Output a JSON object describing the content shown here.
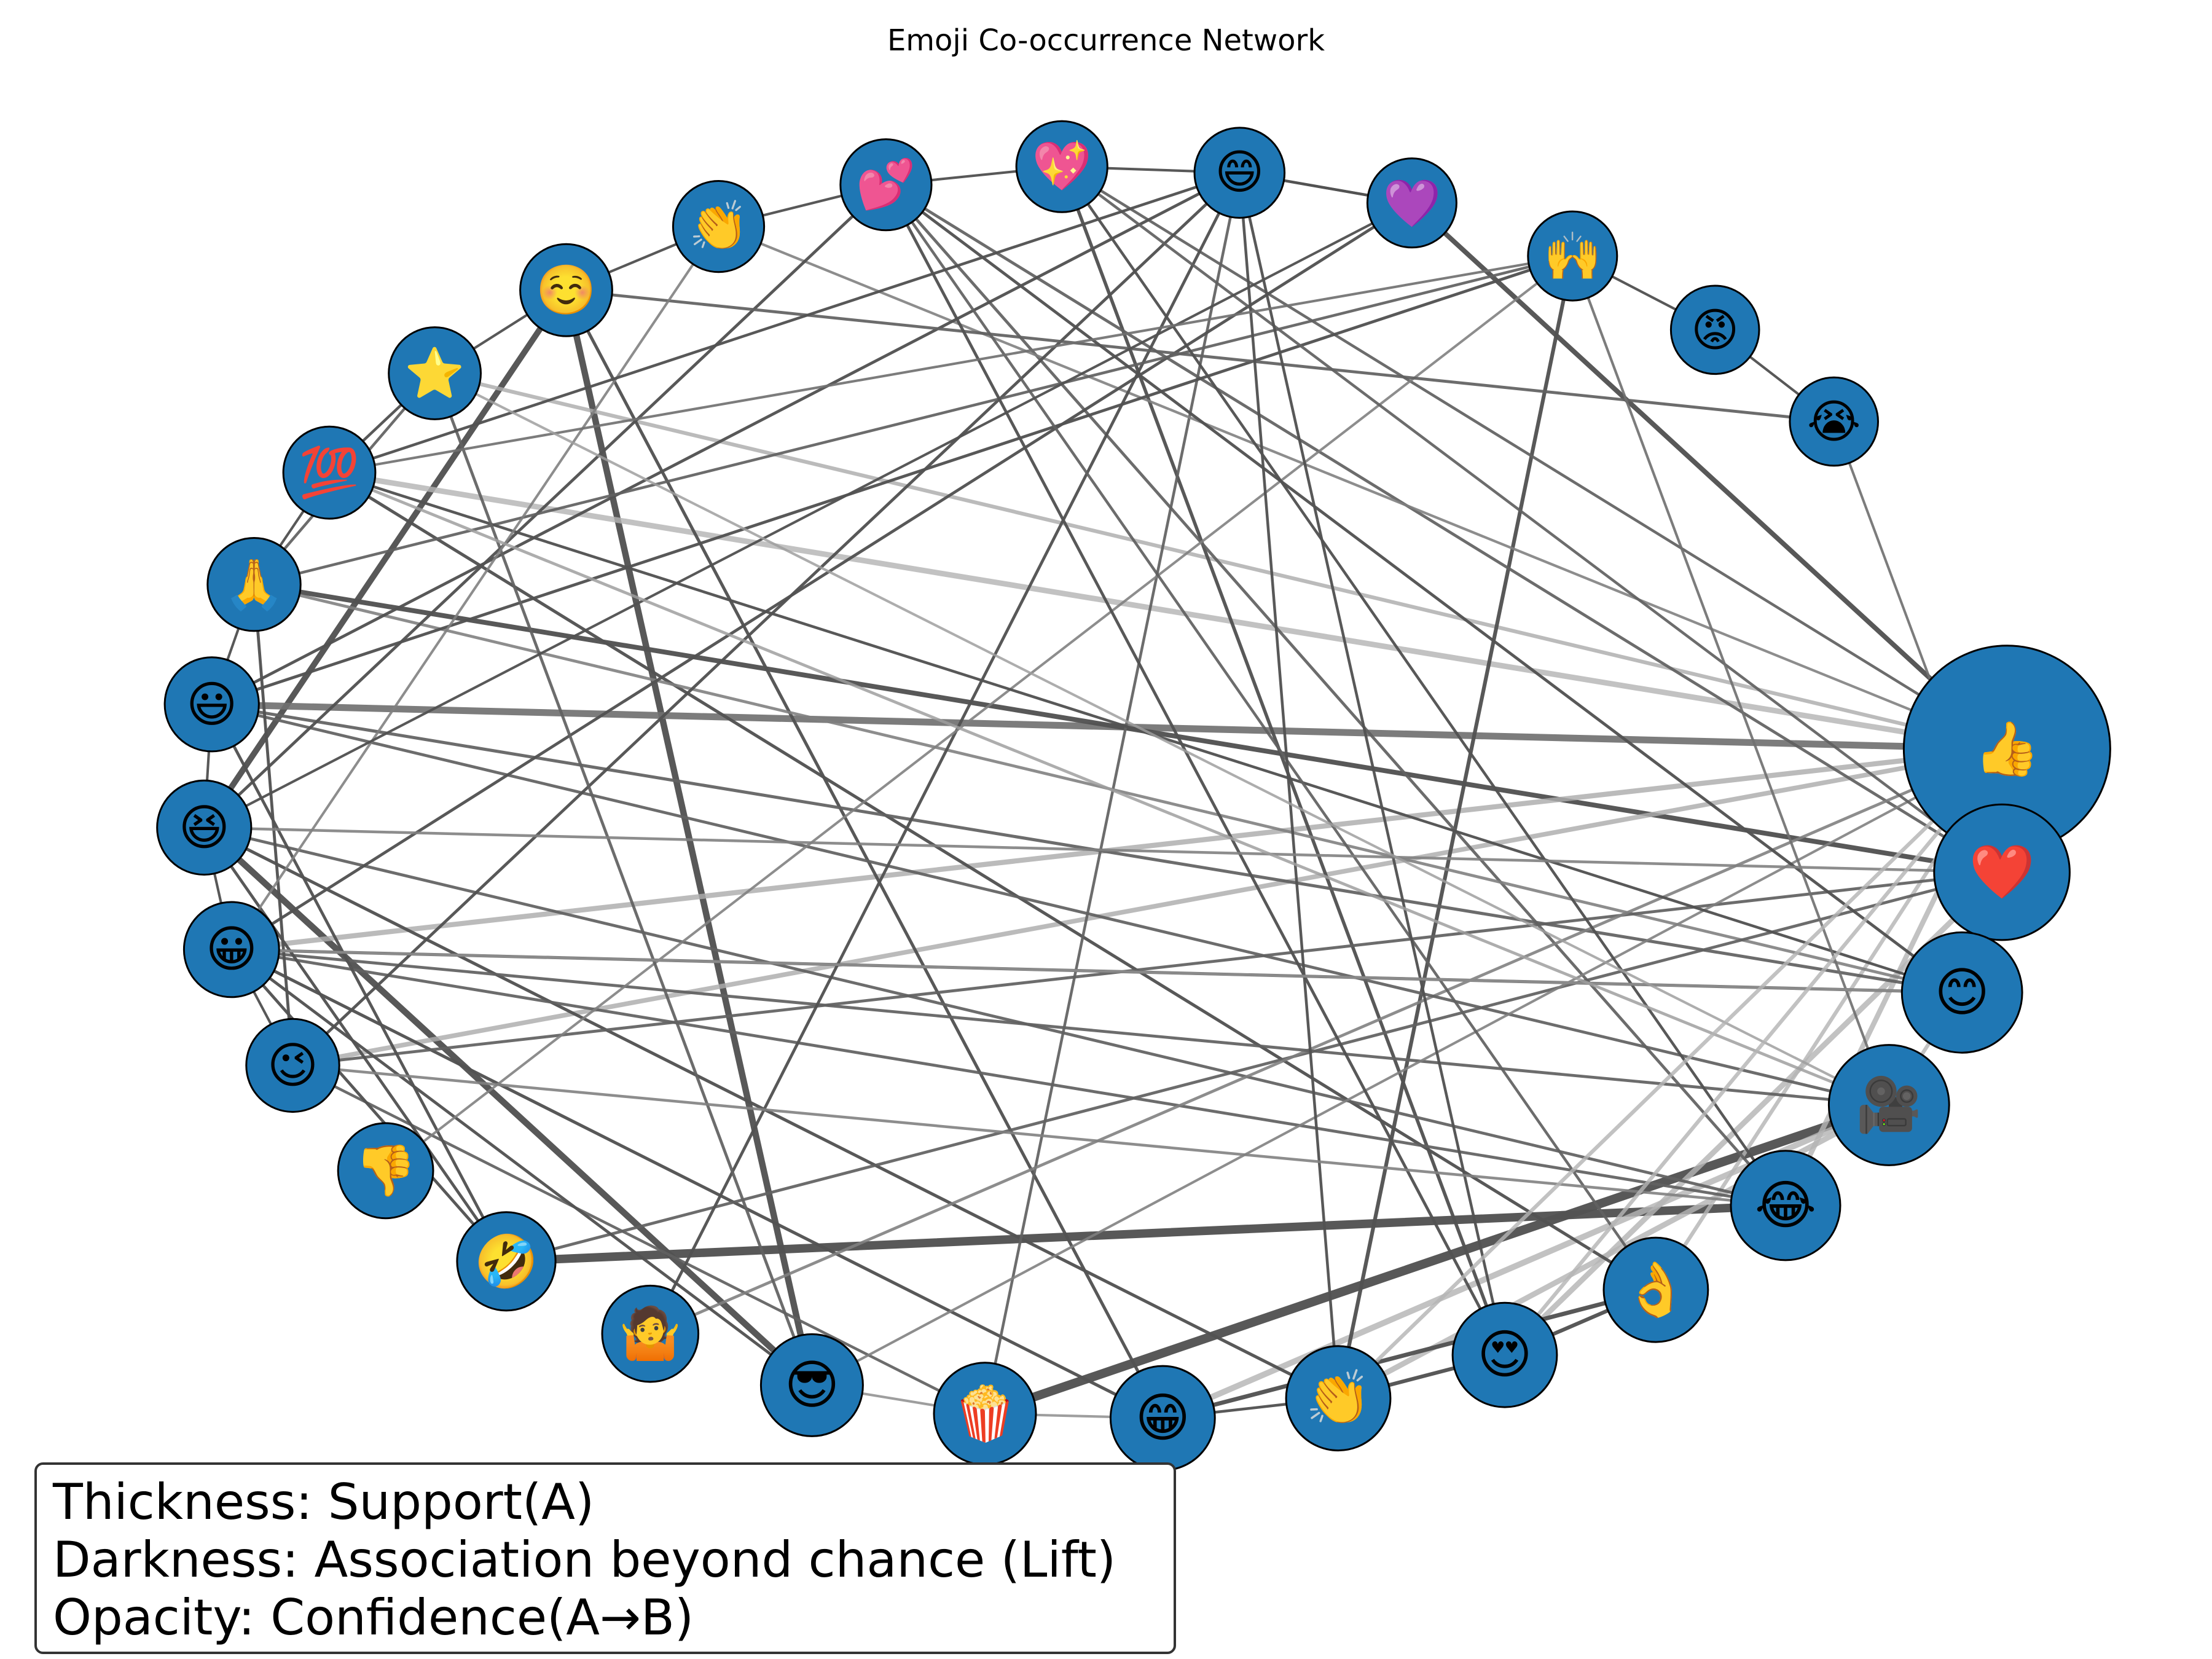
{
  "title": "Emoji Co-occurrence Network",
  "colors": {
    "node_fill": "#1f77b4",
    "node_stroke": "#000000",
    "edge_dark": "#333333",
    "edge_light": "#cccccc"
  },
  "legend": {
    "line1": "Thickness: Support(A)",
    "line2": "Darkness: Association beyond chance (Lift)",
    "line3": "Opacity: Confidence(A→B)"
  },
  "nodes": [
    {
      "id": "thumbs_up",
      "emoji": "👍",
      "size": 1.0
    },
    {
      "id": "heart",
      "emoji": "❤️",
      "size": 0.62
    },
    {
      "id": "blush",
      "emoji": "😊",
      "size": 0.52
    },
    {
      "id": "movie_camera",
      "emoji": "🎥",
      "size": 0.52
    },
    {
      "id": "joy",
      "emoji": "😂",
      "size": 0.44
    },
    {
      "id": "ok_hand",
      "emoji": "👌",
      "size": 0.4
    },
    {
      "id": "heart_eyes",
      "emoji": "😍",
      "size": 0.4
    },
    {
      "id": "clap",
      "emoji": "👏",
      "size": 0.4
    },
    {
      "id": "grin",
      "emoji": "😁",
      "size": 0.4
    },
    {
      "id": "popcorn",
      "emoji": "🍿",
      "size": 0.38
    },
    {
      "id": "sunglasses",
      "emoji": "😎",
      "size": 0.38
    },
    {
      "id": "shrug",
      "emoji": "🤷",
      "size": 0.33
    },
    {
      "id": "rofl",
      "emoji": "🤣",
      "size": 0.35
    },
    {
      "id": "thumbs_down",
      "emoji": "👎",
      "size": 0.32
    },
    {
      "id": "wink",
      "emoji": "😉",
      "size": 0.3
    },
    {
      "id": "grinning",
      "emoji": "😀",
      "size": 0.32
    },
    {
      "id": "laughing",
      "emoji": "😆",
      "size": 0.31
    },
    {
      "id": "smiley",
      "emoji": "😃",
      "size": 0.31
    },
    {
      "id": "pray",
      "emoji": "🙏",
      "size": 0.3
    },
    {
      "id": "hundred",
      "emoji": "💯",
      "size": 0.29
    },
    {
      "id": "star",
      "emoji": "⭐",
      "size": 0.29
    },
    {
      "id": "relaxed",
      "emoji": "☺️",
      "size": 0.29
    },
    {
      "id": "clap_small",
      "emoji": "👏",
      "size": 0.28
    },
    {
      "id": "two_hearts",
      "emoji": "💕",
      "size": 0.28
    },
    {
      "id": "sparkling_heart",
      "emoji": "💖",
      "size": 0.28
    },
    {
      "id": "smile",
      "emoji": "😄",
      "size": 0.27
    },
    {
      "id": "purple_heart",
      "emoji": "💜",
      "size": 0.26
    },
    {
      "id": "raised_hands",
      "emoji": "🙌",
      "size": 0.26
    },
    {
      "id": "rage",
      "emoji": "😡",
      "size": 0.25
    },
    {
      "id": "sob",
      "emoji": "😭",
      "size": 0.25
    }
  ],
  "edges": [
    [
      "popcorn",
      "movie_camera",
      0.9,
      0.2
    ],
    [
      "rofl",
      "joy",
      0.85,
      0.2
    ],
    [
      "sunglasses",
      "laughing",
      0.6,
      0.2
    ],
    [
      "sunglasses",
      "relaxed",
      0.6,
      0.2
    ],
    [
      "laughing",
      "relaxed",
      0.55,
      0.2
    ],
    [
      "smiley",
      "thumbs_up",
      0.65,
      0.4
    ],
    [
      "pray",
      "heart",
      0.42,
      0.2
    ],
    [
      "purple_heart",
      "thumbs_up",
      0.42,
      0.2
    ],
    [
      "grinning",
      "thumbs_up",
      0.45,
      0.8
    ],
    [
      "wink",
      "thumbs_up",
      0.4,
      0.8
    ],
    [
      "hundred",
      "thumbs_up",
      0.5,
      0.85
    ],
    [
      "star",
      "thumbs_up",
      0.3,
      0.8
    ],
    [
      "grin",
      "movie_camera",
      0.55,
      0.85
    ],
    [
      "clap",
      "movie_camera",
      0.5,
      0.85
    ],
    [
      "heart_eyes",
      "heart",
      0.5,
      0.85
    ],
    [
      "ok_hand",
      "thumbs_up",
      0.3,
      0.85
    ],
    [
      "joy",
      "thumbs_up",
      0.45,
      0.85
    ],
    [
      "grin",
      "ok_hand",
      0.35,
      0.2
    ],
    [
      "clap",
      "heart_eyes",
      0.3,
      0.2
    ],
    [
      "heart_eyes",
      "ok_hand",
      0.3,
      0.2
    ],
    [
      "clap",
      "raised_hands",
      0.3,
      0.2
    ],
    [
      "heart_eyes",
      "sparkling_heart",
      0.25,
      0.2
    ],
    [
      "ok_hand",
      "hundred",
      0.22,
      0.2
    ],
    [
      "grin",
      "grinning",
      0.22,
      0.2
    ],
    [
      "grin",
      "relaxed",
      0.22,
      0.2
    ],
    [
      "clap",
      "laughing",
      0.22,
      0.2
    ],
    [
      "popcorn",
      "wink",
      0.18,
      0.3
    ],
    [
      "popcorn",
      "smile",
      0.18,
      0.3
    ],
    [
      "joy",
      "grinning",
      0.2,
      0.3
    ],
    [
      "joy",
      "laughing",
      0.2,
      0.3
    ],
    [
      "joy",
      "two_hearts",
      0.2,
      0.3
    ],
    [
      "blush",
      "grinning",
      0.22,
      0.3
    ],
    [
      "blush",
      "smiley",
      0.22,
      0.3
    ],
    [
      "blush",
      "pray",
      0.2,
      0.5
    ],
    [
      "heart",
      "wink",
      0.2,
      0.3
    ],
    [
      "heart",
      "rofl",
      0.2,
      0.3
    ],
    [
      "heart",
      "two_hearts",
      0.2,
      0.3
    ],
    [
      "thumbs_up",
      "shrug",
      0.2,
      0.5
    ],
    [
      "thumbs_up",
      "sparkling_heart",
      0.18,
      0.3
    ],
    [
      "thumbs_up",
      "clap_small",
      0.16,
      0.5
    ],
    [
      "movie_camera",
      "grinning",
      0.2,
      0.3
    ],
    [
      "movie_camera",
      "smiley",
      0.2,
      0.3
    ],
    [
      "sunglasses",
      "thumbs_up",
      0.15,
      0.5
    ],
    [
      "sunglasses",
      "grinning",
      0.2,
      0.2
    ],
    [
      "shrug",
      "smile",
      0.2,
      0.2
    ],
    [
      "rofl",
      "smiley",
      0.2,
      0.2
    ],
    [
      "rofl",
      "grinning",
      0.2,
      0.2
    ],
    [
      "rofl",
      "laughing",
      0.2,
      0.2
    ],
    [
      "thumbs_down",
      "raised_hands",
      0.15,
      0.5
    ],
    [
      "wink",
      "pray",
      0.2,
      0.2
    ],
    [
      "wink",
      "smile",
      0.2,
      0.2
    ],
    [
      "grinning",
      "purple_heart",
      0.2,
      0.2
    ],
    [
      "laughing",
      "two_hearts",
      0.2,
      0.2
    ],
    [
      "smiley",
      "smile",
      0.2,
      0.2
    ],
    [
      "smiley",
      "raised_hands",
      0.2,
      0.2
    ],
    [
      "pray",
      "raised_hands",
      0.18,
      0.3
    ],
    [
      "pray",
      "star",
      0.18,
      0.3
    ],
    [
      "hundred",
      "star",
      0.18,
      0.2
    ],
    [
      "hundred",
      "blush",
      0.18,
      0.2
    ],
    [
      "star",
      "sunglasses",
      0.2,
      0.3
    ],
    [
      "relaxed",
      "sob",
      0.2,
      0.3
    ],
    [
      "clap_small",
      "grinning",
      0.15,
      0.5
    ],
    [
      "two_hearts",
      "heart_eyes",
      0.2,
      0.2
    ],
    [
      "two_hearts",
      "blush",
      0.2,
      0.2
    ],
    [
      "two_hearts",
      "ok_hand",
      0.18,
      0.3
    ],
    [
      "sparkling_heart",
      "joy",
      0.18,
      0.2
    ],
    [
      "sparkling_heart",
      "heart",
      0.18,
      0.3
    ],
    [
      "smile",
      "purple_heart",
      0.18,
      0.2
    ],
    [
      "smile",
      "clap",
      0.18,
      0.2
    ],
    [
      "smile",
      "heart_eyes",
      0.18,
      0.2
    ],
    [
      "smile",
      "hundred",
      0.18,
      0.2
    ],
    [
      "purple_heart",
      "laughing",
      0.15,
      0.2
    ],
    [
      "raised_hands",
      "movie_camera",
      0.16,
      0.4
    ],
    [
      "raised_hands",
      "hundred",
      0.15,
      0.4
    ],
    [
      "rage",
      "sob",
      0.15,
      0.2
    ],
    [
      "rage",
      "raised_hands",
      0.15,
      0.2
    ],
    [
      "sob",
      "heart",
      0.15,
      0.4
    ],
    [
      "wink",
      "grinning",
      0.15,
      0.2
    ],
    [
      "grinning",
      "laughing",
      0.15,
      0.2
    ],
    [
      "laughing",
      "smiley",
      0.15,
      0.2
    ],
    [
      "smiley",
      "pray",
      0.15,
      0.2
    ],
    [
      "pray",
      "hundred",
      0.15,
      0.2
    ],
    [
      "star",
      "relaxed",
      0.15,
      0.2
    ],
    [
      "relaxed",
      "clap_small",
      0.15,
      0.2
    ],
    [
      "clap_small",
      "two_hearts",
      0.15,
      0.2
    ],
    [
      "two_hearts",
      "sparkling_heart",
      0.15,
      0.2
    ],
    [
      "sparkling_heart",
      "smile",
      0.15,
      0.2
    ],
    [
      "smile",
      "purple_heart",
      0.15,
      0.2
    ],
    [
      "grin",
      "clap",
      0.18,
      0.2
    ],
    [
      "popcorn",
      "grin",
      0.15,
      0.6
    ],
    [
      "sunglasses",
      "popcorn",
      0.15,
      0.6
    ],
    [
      "blush",
      "heart",
      0.35,
      0.85
    ],
    [
      "heart",
      "thumbs_up",
      0.35,
      0.85
    ],
    [
      "movie_camera",
      "blush",
      0.3,
      0.85
    ],
    [
      "grinning",
      "blush",
      0.18,
      0.6
    ],
    [
      "wink",
      "joy",
      0.18,
      0.5
    ],
    [
      "laughing",
      "heart",
      0.18,
      0.5
    ],
    [
      "hundred",
      "movie_camera",
      0.2,
      0.7
    ],
    [
      "star",
      "movie_camera",
      0.15,
      0.7
    ],
    [
      "clap",
      "thumbs_up",
      0.3,
      0.85
    ],
    [
      "heart_eyes",
      "thumbs_up",
      0.3,
      0.85
    ]
  ]
}
